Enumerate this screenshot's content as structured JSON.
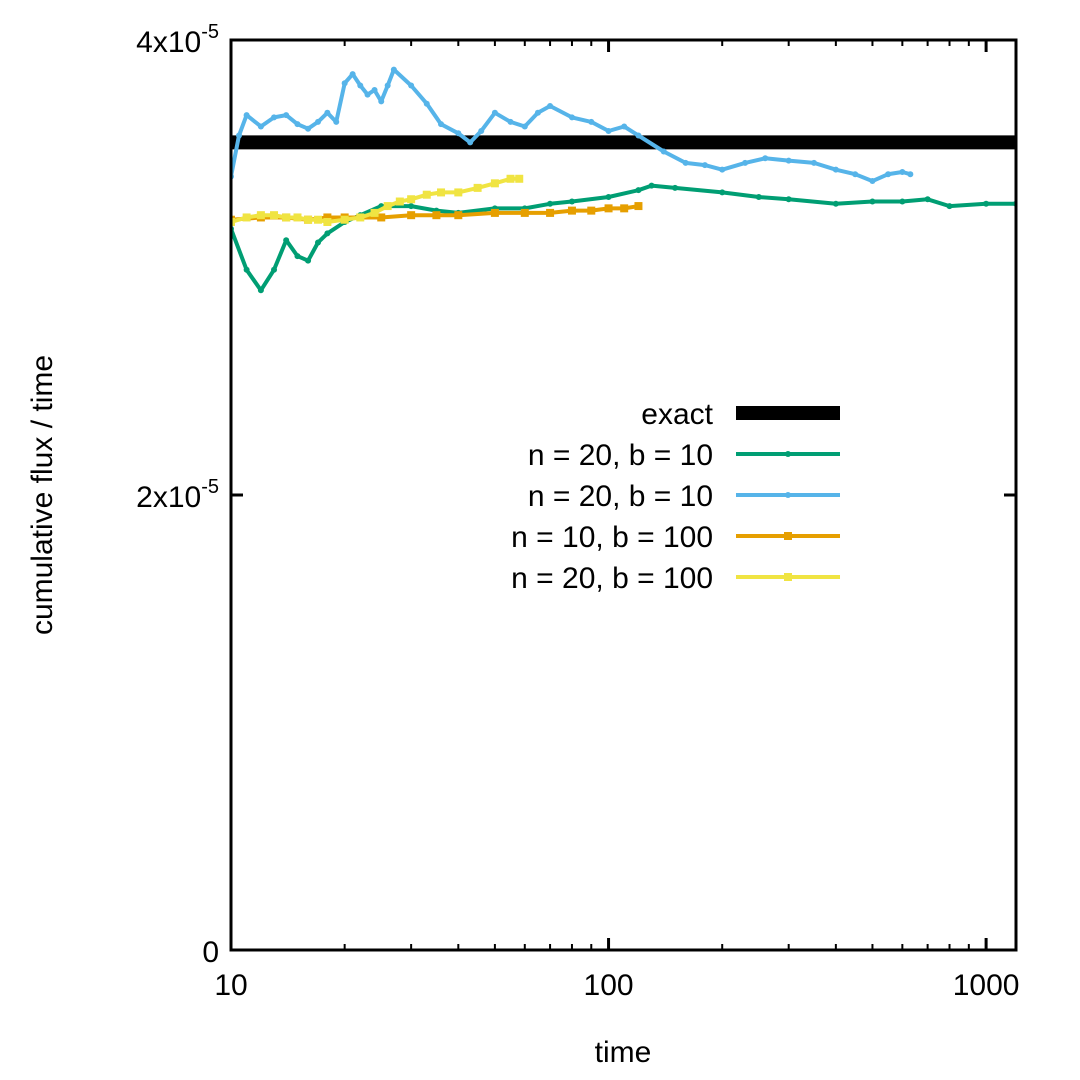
{
  "chart_data": {
    "type": "line",
    "title": "",
    "xlabel": "time",
    "ylabel": "cumulative flux / time",
    "xscale": "log",
    "xlim": [
      10,
      1200
    ],
    "ylim": [
      0,
      4e-05
    ],
    "grid": false,
    "legend_position": "center-right",
    "x_ticks": [
      {
        "value": 10,
        "label": "10"
      },
      {
        "value": 100,
        "label": "100"
      },
      {
        "value": 1000,
        "label": "1000"
      }
    ],
    "y_ticks": [
      {
        "value": 0,
        "label": "0",
        "mantissa": "0",
        "exponent": ""
      },
      {
        "value": 2e-05,
        "label": "2x10^-5",
        "mantissa": "2x10",
        "exponent": "-5"
      },
      {
        "value": 4e-05,
        "label": "4x10^-5",
        "mantissa": "4x10",
        "exponent": "-5"
      }
    ],
    "series": [
      {
        "name": "exact",
        "color": "#000000",
        "marker": "none",
        "x": [
          10,
          1200
        ],
        "y": [
          3.55e-05,
          3.55e-05
        ]
      },
      {
        "name": "n = 20, b = 10",
        "color": "#009e73",
        "marker": "dot",
        "x": [
          10,
          11,
          12,
          13,
          14,
          15,
          16,
          17,
          18,
          20,
          22,
          25,
          30,
          35,
          40,
          50,
          60,
          70,
          80,
          100,
          120,
          130,
          150,
          200,
          250,
          300,
          400,
          500,
          600,
          700,
          800,
          1000,
          1200
        ],
        "y": [
          3.17e-05,
          2.99e-05,
          2.9e-05,
          2.99e-05,
          3.12e-05,
          3.05e-05,
          3.03e-05,
          3.11e-05,
          3.15e-05,
          3.2e-05,
          3.23e-05,
          3.27e-05,
          3.27e-05,
          3.25e-05,
          3.24e-05,
          3.26e-05,
          3.26e-05,
          3.28e-05,
          3.29e-05,
          3.31e-05,
          3.34e-05,
          3.36e-05,
          3.35e-05,
          3.33e-05,
          3.31e-05,
          3.3e-05,
          3.28e-05,
          3.29e-05,
          3.29e-05,
          3.3e-05,
          3.27e-05,
          3.28e-05,
          3.28e-05
        ]
      },
      {
        "name": "n = 20, b = 10",
        "color": "#56b4e9",
        "marker": "dot",
        "x": [
          10,
          10.5,
          11,
          12,
          13,
          14,
          15,
          16,
          17,
          18,
          19,
          20,
          21,
          22,
          23,
          24,
          25,
          26,
          27,
          30,
          33,
          36,
          40,
          43,
          46,
          50,
          55,
          60,
          65,
          70,
          80,
          90,
          100,
          110,
          120,
          140,
          160,
          180,
          200,
          230,
          260,
          300,
          350,
          400,
          450,
          500,
          550,
          600,
          630
        ],
        "y": [
          3.4e-05,
          3.58e-05,
          3.67e-05,
          3.62e-05,
          3.66e-05,
          3.67e-05,
          3.63e-05,
          3.61e-05,
          3.64e-05,
          3.68e-05,
          3.64e-05,
          3.81e-05,
          3.85e-05,
          3.8e-05,
          3.76e-05,
          3.78e-05,
          3.73e-05,
          3.8e-05,
          3.87e-05,
          3.8e-05,
          3.72e-05,
          3.63e-05,
          3.59e-05,
          3.55e-05,
          3.6e-05,
          3.68e-05,
          3.64e-05,
          3.62e-05,
          3.68e-05,
          3.71e-05,
          3.66e-05,
          3.64e-05,
          3.6e-05,
          3.62e-05,
          3.58e-05,
          3.51e-05,
          3.46e-05,
          3.45e-05,
          3.43e-05,
          3.46e-05,
          3.48e-05,
          3.47e-05,
          3.46e-05,
          3.43e-05,
          3.41e-05,
          3.38e-05,
          3.41e-05,
          3.42e-05,
          3.41e-05
        ]
      },
      {
        "name": "n = 10, b = 100",
        "color": "#e69f00",
        "marker": "square",
        "x": [
          10,
          12,
          14,
          16,
          18,
          20,
          25,
          30,
          35,
          40,
          50,
          60,
          70,
          80,
          90,
          100,
          110,
          120
        ],
        "y": [
          3.21e-05,
          3.22e-05,
          3.22e-05,
          3.21e-05,
          3.22e-05,
          3.22e-05,
          3.22e-05,
          3.23e-05,
          3.23e-05,
          3.23e-05,
          3.24e-05,
          3.24e-05,
          3.24e-05,
          3.25e-05,
          3.25e-05,
          3.26e-05,
          3.26e-05,
          3.27e-05
        ]
      },
      {
        "name": "n = 20, b = 100",
        "color": "#f0e442",
        "marker": "square",
        "x": [
          10,
          11,
          12,
          13,
          14,
          15,
          16,
          17,
          18,
          20,
          22,
          24,
          26,
          28,
          30,
          33,
          36,
          40,
          45,
          50,
          55,
          58
        ],
        "y": [
          3.2e-05,
          3.22e-05,
          3.23e-05,
          3.23e-05,
          3.22e-05,
          3.22e-05,
          3.21e-05,
          3.21e-05,
          3.2e-05,
          3.21e-05,
          3.22e-05,
          3.24e-05,
          3.27e-05,
          3.29e-05,
          3.3e-05,
          3.32e-05,
          3.33e-05,
          3.33e-05,
          3.35e-05,
          3.37e-05,
          3.39e-05,
          3.39e-05
        ]
      }
    ]
  }
}
